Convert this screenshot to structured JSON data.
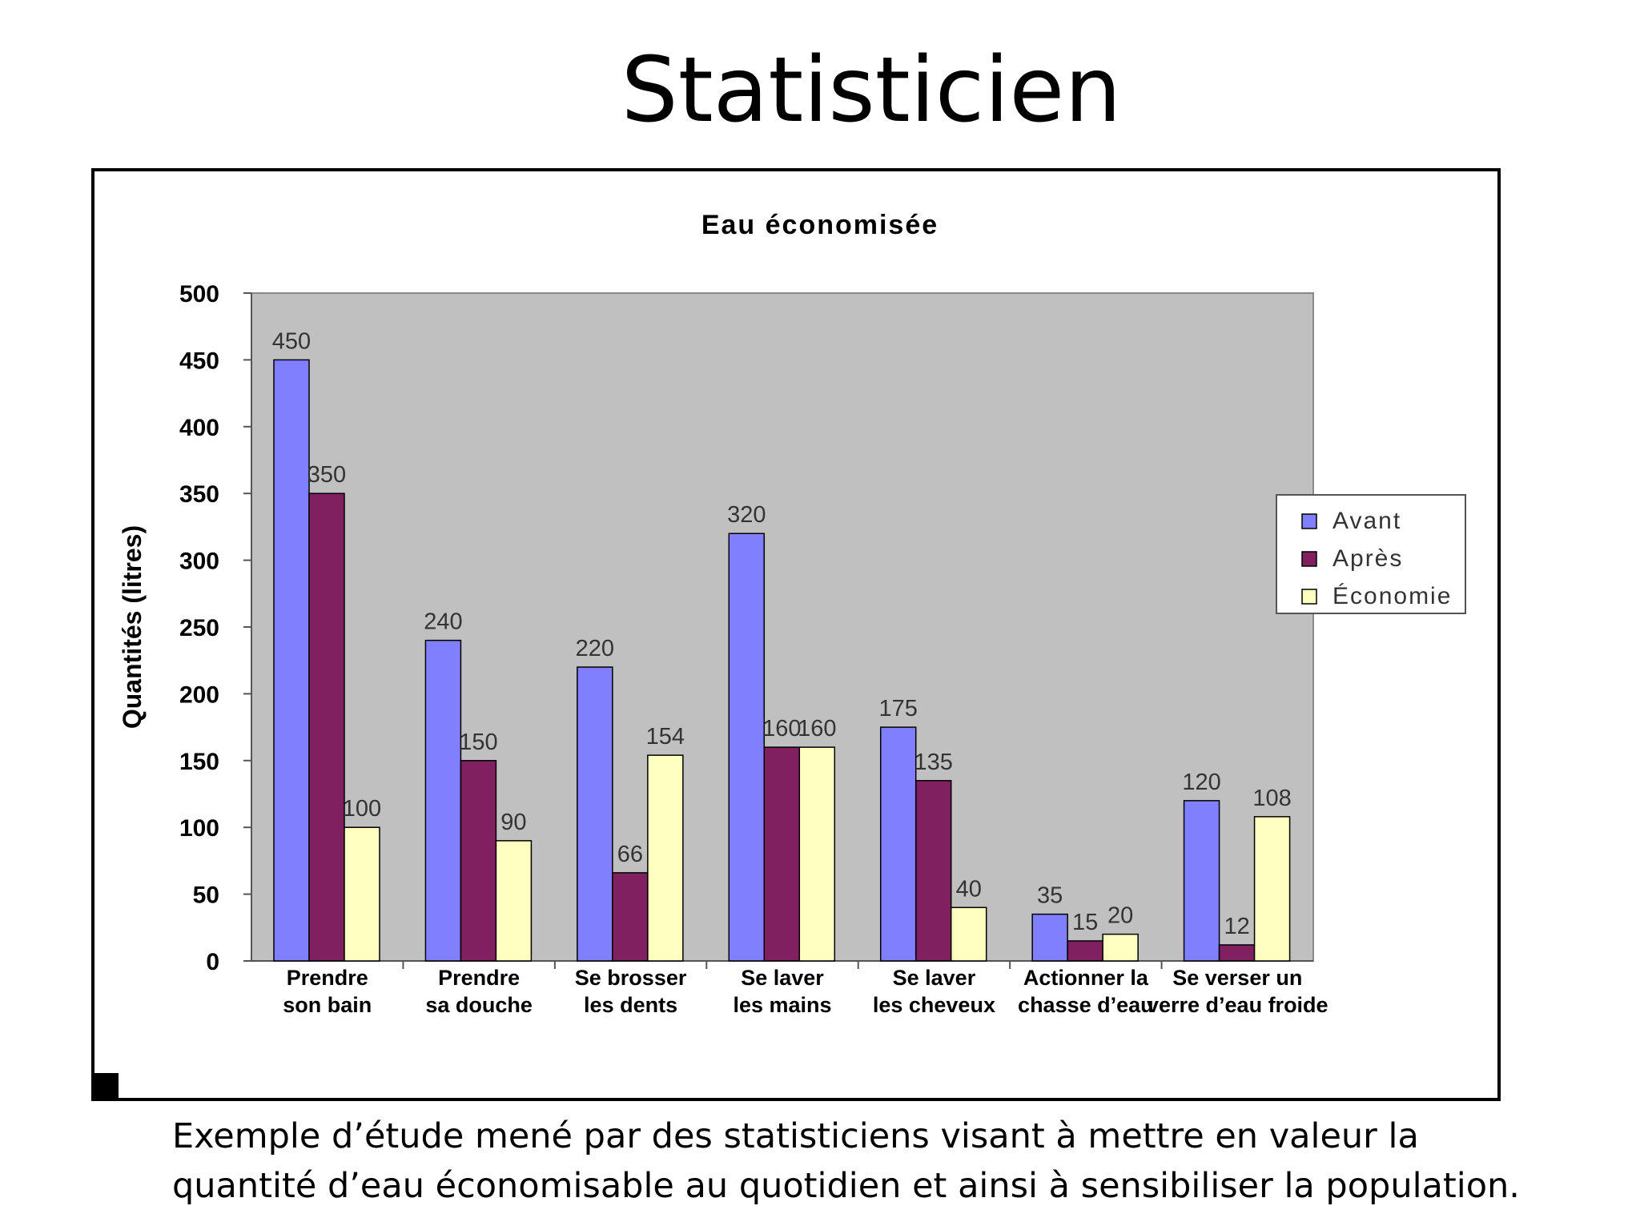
{
  "slide": {
    "title": "Statisticien",
    "caption_lines": [
      "Exemple d’étude mené par des statisticiens visant à mettre en valeur la",
      "quantité d’eau économisable au quotidien et ainsi à sensibiliser la population."
    ]
  },
  "chart_data": {
    "type": "bar",
    "title": "Eau économisée",
    "ylabel": "Quantités (litres)",
    "xlabel": "",
    "ylim": [
      0,
      500
    ],
    "yticks": [
      0,
      50,
      100,
      150,
      200,
      250,
      300,
      350,
      400,
      450,
      500
    ],
    "grid": false,
    "legend_position": "right",
    "plot_background": "#c0c0c0",
    "categories": [
      [
        "Prendre",
        "son bain"
      ],
      [
        "Prendre",
        "sa douche"
      ],
      [
        "Se brosser",
        "les dents"
      ],
      [
        "Se laver",
        "les mains"
      ],
      [
        "Se laver",
        "les cheveux"
      ],
      [
        "Actionner la",
        "chasse d’eau"
      ],
      [
        "Se verser un",
        "verre d’eau froide"
      ]
    ],
    "series": [
      {
        "name": "Avant",
        "color": "#8080ff",
        "values": [
          450,
          240,
          220,
          320,
          175,
          35,
          120
        ]
      },
      {
        "name": "Après",
        "color": "#802060",
        "values": [
          350,
          150,
          66,
          160,
          135,
          15,
          12
        ]
      },
      {
        "name": "Économie",
        "color": "#ffffc0",
        "values": [
          100,
          90,
          154,
          160,
          40,
          20,
          108
        ]
      }
    ]
  }
}
